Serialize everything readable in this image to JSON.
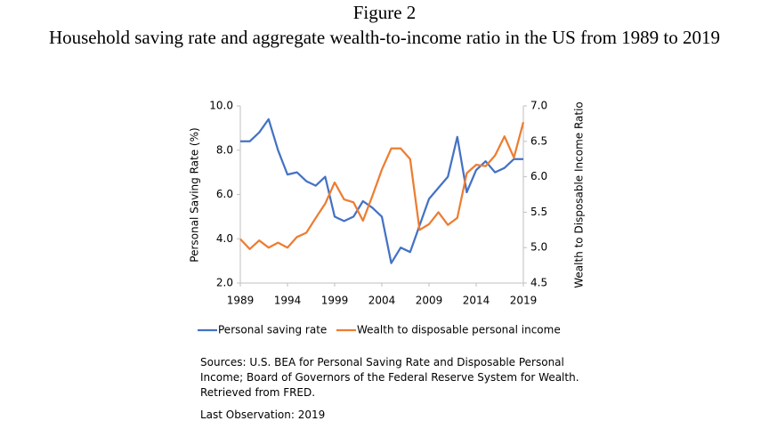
{
  "chart_data": {
    "type": "line",
    "title": "Figure 2",
    "subtitle": "Household saving rate and aggregate wealth-to-income ratio in the US from 1989 to 2019",
    "ylabel": "Personal Saving Rate (%)",
    "y2label": "Wealth to Disposable Income Ratio",
    "x": [
      1989,
      1990,
      1991,
      1992,
      1993,
      1994,
      1995,
      1996,
      1997,
      1998,
      1999,
      2000,
      2001,
      2002,
      2003,
      2004,
      2005,
      2006,
      2007,
      2008,
      2009,
      2010,
      2011,
      2012,
      2013,
      2014,
      2015,
      2016,
      2017,
      2018,
      2019
    ],
    "xlim": [
      1989,
      2019
    ],
    "xticks": [
      1989,
      1994,
      1999,
      2004,
      2009,
      2014,
      2019
    ],
    "ylim": [
      2,
      10
    ],
    "yticks": [
      {
        "value": 2,
        "label": "2.0"
      },
      {
        "value": 4,
        "label": "4.0"
      },
      {
        "value": 6,
        "label": "6.0"
      },
      {
        "value": 8,
        "label": "8.0"
      },
      {
        "value": 10,
        "label": "10.0"
      }
    ],
    "y2lim": [
      4.5,
      7
    ],
    "y2ticks": [
      {
        "value": 4.5,
        "label": "4.5"
      },
      {
        "value": 5,
        "label": "5.0"
      },
      {
        "value": 5.5,
        "label": "5.5"
      },
      {
        "value": 6,
        "label": "6.0"
      },
      {
        "value": 6.5,
        "label": "6.5"
      },
      {
        "value": 7,
        "label": "7.0"
      }
    ],
    "legend": "bottom",
    "series": [
      {
        "name": "Personal saving rate",
        "color": "#4472c4",
        "values": [
          8.4,
          8.4,
          8.8,
          9.4,
          8.0,
          6.9,
          7.0,
          6.6,
          6.4,
          6.8,
          5.0,
          4.8,
          5.0,
          5.7,
          5.4,
          5.0,
          2.9,
          3.6,
          3.4,
          4.6,
          5.8,
          6.3,
          6.8,
          8.6,
          6.1,
          7.1,
          7.5,
          7.0,
          7.2,
          7.6,
          7.6
        ]
      },
      {
        "name": "Wealth to disposable personal income",
        "color": "#ed7d31",
        "axis": "y2",
        "values": [
          5.12,
          4.98,
          5.1,
          5.0,
          5.07,
          5.0,
          5.15,
          5.21,
          5.42,
          5.62,
          5.92,
          5.68,
          5.64,
          5.38,
          5.73,
          6.1,
          6.4,
          6.4,
          6.25,
          5.25,
          5.33,
          5.5,
          5.32,
          5.42,
          6.05,
          6.17,
          6.15,
          6.3,
          6.57,
          6.27,
          6.77
        ]
      }
    ],
    "notes": [
      "Sources: U.S. BEA for Personal Saving Rate and Disposable Personal Income; Board of Governors of the Federal Reserve System for Wealth. Retrieved from FRED.",
      "Last Observation: 2019"
    ]
  }
}
